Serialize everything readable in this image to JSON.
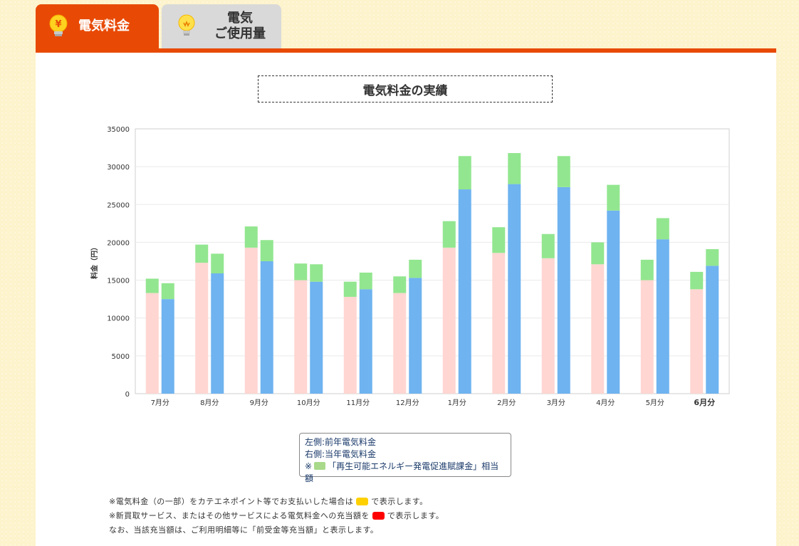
{
  "tabs": [
    {
      "label": "電気料金",
      "icon": "yen-bulb-icon"
    },
    {
      "label_line1": "電気",
      "label_line2": "ご使用量",
      "icon": "lightbulb-icon"
    }
  ],
  "colors": {
    "accent": "#e84a05",
    "prev_year": "#ffd6d2",
    "curr_year": "#6fb3f0",
    "renewable": "#92e68f",
    "point_payment": "#ffd000",
    "sales_credit": "#ff0000"
  },
  "chart_data": {
    "type": "bar",
    "title": "電気料金の実績",
    "ylabel": "料金（円）",
    "xlabel": "",
    "ylim": [
      0,
      35000
    ],
    "yticks": [
      0,
      5000,
      10000,
      15000,
      20000,
      25000,
      30000,
      35000
    ],
    "grid": true,
    "categories": [
      "7月分",
      "8月分",
      "9月分",
      "10月分",
      "11月分",
      "12月分",
      "1月分",
      "2月分",
      "3月分",
      "4月分",
      "5月分",
      "6月分"
    ],
    "highlight_category": "6月分",
    "series": [
      {
        "name": "前年電気料金",
        "stack": "前年",
        "values": [
          13300,
          17300,
          19300,
          15000,
          12800,
          13300,
          19300,
          18600,
          17900,
          17100,
          15000,
          13800
        ]
      },
      {
        "name": "前年再エネ賦課金",
        "stack": "前年",
        "values": [
          1900,
          2400,
          2800,
          2200,
          2000,
          2200,
          3500,
          3400,
          3200,
          2900,
          2700,
          2300
        ]
      },
      {
        "name": "当年電気料金",
        "stack": "当年",
        "values": [
          12500,
          15900,
          17500,
          14800,
          13800,
          15300,
          27000,
          27700,
          27300,
          24200,
          20400,
          16900
        ]
      },
      {
        "name": "当年再エネ賦課金",
        "stack": "当年",
        "values": [
          2100,
          2600,
          2800,
          2300,
          2200,
          2400,
          4400,
          4100,
          4100,
          3400,
          2800,
          2200
        ]
      }
    ]
  },
  "legend": {
    "left": "左側:前年電気料金",
    "right": "右側:当年電気料金",
    "note_prefix": "※",
    "note_text": "「再生可能エネルギー発電促進賦課金」相当額"
  },
  "notes": {
    "line1_a": "※電気料金（の一部）をカテエネポイント等でお支払いした場合は",
    "line1_b": "で表示します。",
    "line2_a": "※新買取サービス、またはその他サービスによる電気料金への充当額を",
    "line2_b": "で表示します。",
    "line3": "なお、当該充当額は、ご利用明細等に「前受金等充当額」と表示します。"
  }
}
